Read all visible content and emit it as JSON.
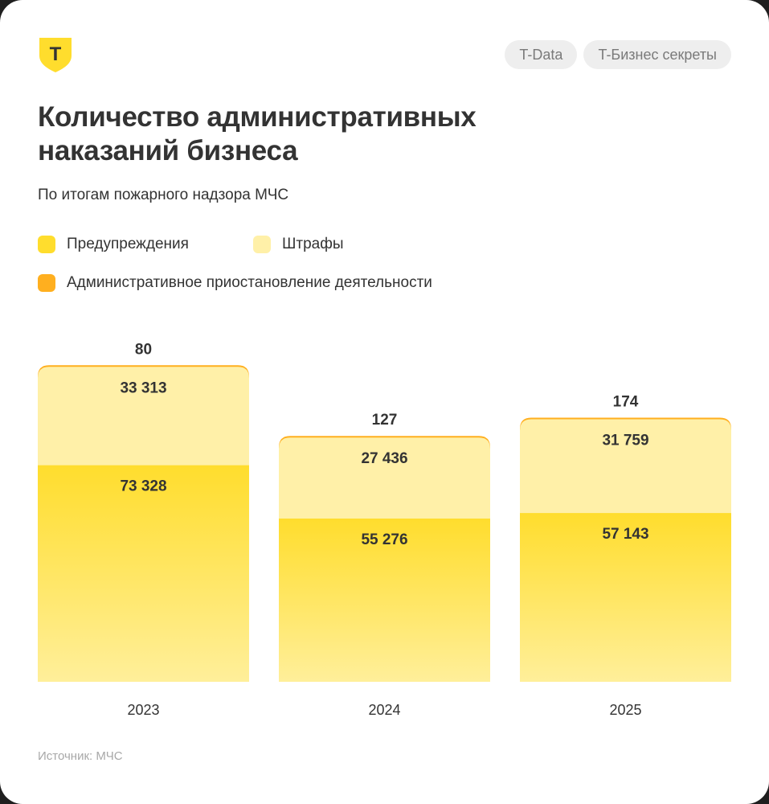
{
  "header": {
    "tags": [
      "T-Data",
      "T-Бизнес секреты"
    ],
    "title_line1": "Количество административных",
    "title_line2": "наказаний бизнеса",
    "subtitle": "По итогам пожарного надзора МЧС"
  },
  "logo_letter": "Т",
  "colors": {
    "logo": "#FFDD2D",
    "warnings": "#FFDD2D",
    "fines": "#FFF0A8",
    "suspension": "#FFAF1F"
  },
  "legend": [
    {
      "label": "Предупреждения",
      "color": "#FFDD2D"
    },
    {
      "label": "Штрафы",
      "color": "#FFF0A8"
    },
    {
      "label": "Административное приостановление деятельности",
      "color": "#FFAF1F"
    }
  ],
  "chart_data": {
    "type": "bar",
    "stacked": true,
    "categories": [
      "2023",
      "2024",
      "2025"
    ],
    "series": [
      {
        "name": "Предупреждения",
        "values": [
          73328,
          55276,
          57143
        ],
        "labels": [
          "73 328",
          "55 276",
          "57 143"
        ],
        "color": "#FFDD2D"
      },
      {
        "name": "Штрафы",
        "values": [
          33313,
          27436,
          31759
        ],
        "labels": [
          "33 313",
          "27 436",
          "31 759"
        ],
        "color": "#FFF0A8"
      },
      {
        "name": "Административное приостановление деятельности",
        "values": [
          80,
          127,
          174
        ],
        "labels": [
          "80",
          "127",
          "174"
        ],
        "color": "#FFAF1F"
      }
    ],
    "ylim": [
      0,
      106721
    ],
    "grid": false,
    "legend_position": "top-left"
  },
  "source": "Источник: МЧС"
}
